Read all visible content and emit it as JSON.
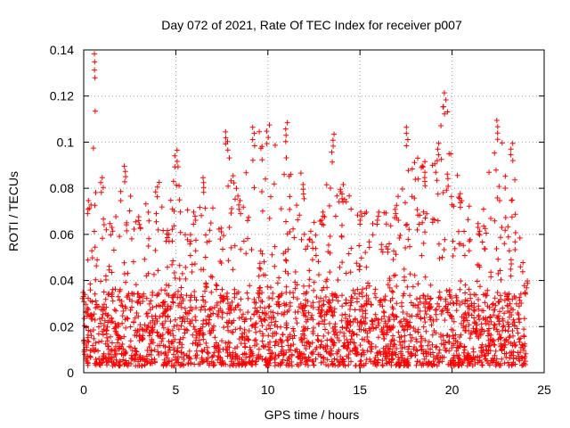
{
  "chart_data": {
    "type": "scatter",
    "title": "Day 072 of 2021, Rate Of TEC Index for receiver p007",
    "xlabel": "GPS time / hours",
    "ylabel": "ROTI / TECUs",
    "xlim": [
      0,
      25
    ],
    "ylim": [
      0,
      0.14
    ],
    "grid": true,
    "marker": "+",
    "series_color": "#ff0000",
    "x_ticks": [
      0,
      5,
      10,
      15,
      20,
      25
    ],
    "x_tick_labels": [
      "0",
      "5",
      "10",
      "15",
      "20",
      "25"
    ],
    "y_ticks": [
      0,
      0.02,
      0.04,
      0.06,
      0.08,
      0.1,
      0.12,
      0.14
    ],
    "y_tick_labels": [
      "0",
      "0.02",
      "0.04",
      "0.06",
      "0.08",
      "0.1",
      "0.12",
      "0.14"
    ],
    "x_range_hours": [
      0,
      24
    ],
    "envelope": [
      {
        "x": 0.0,
        "y": 0.035
      },
      {
        "x": 0.3,
        "y": 0.075
      },
      {
        "x": 0.55,
        "y": 0.139
      },
      {
        "x": 1.0,
        "y": 0.085
      },
      {
        "x": 1.5,
        "y": 0.065
      },
      {
        "x": 2.2,
        "y": 0.09
      },
      {
        "x": 3.0,
        "y": 0.068
      },
      {
        "x": 4.0,
        "y": 0.083
      },
      {
        "x": 4.5,
        "y": 0.062
      },
      {
        "x": 5.0,
        "y": 0.097
      },
      {
        "x": 6.0,
        "y": 0.07
      },
      {
        "x": 6.5,
        "y": 0.085
      },
      {
        "x": 7.5,
        "y": 0.063
      },
      {
        "x": 7.8,
        "y": 0.105
      },
      {
        "x": 8.5,
        "y": 0.075
      },
      {
        "x": 9.2,
        "y": 0.107
      },
      {
        "x": 10.0,
        "y": 0.108
      },
      {
        "x": 11.0,
        "y": 0.109
      },
      {
        "x": 12.0,
        "y": 0.082
      },
      {
        "x": 13.0,
        "y": 0.07
      },
      {
        "x": 13.5,
        "y": 0.104
      },
      {
        "x": 14.0,
        "y": 0.082
      },
      {
        "x": 15.0,
        "y": 0.07
      },
      {
        "x": 16.0,
        "y": 0.07
      },
      {
        "x": 17.0,
        "y": 0.073
      },
      {
        "x": 17.6,
        "y": 0.107
      },
      {
        "x": 18.5,
        "y": 0.092
      },
      {
        "x": 19.2,
        "y": 0.1
      },
      {
        "x": 19.6,
        "y": 0.122
      },
      {
        "x": 20.5,
        "y": 0.078
      },
      {
        "x": 21.5,
        "y": 0.065
      },
      {
        "x": 22.5,
        "y": 0.11
      },
      {
        "x": 23.2,
        "y": 0.1
      },
      {
        "x": 24.0,
        "y": 0.04
      }
    ],
    "baseline": {
      "min": 0.003,
      "typical": 0.012,
      "max": 0.035
    },
    "points_total": 2600
  }
}
